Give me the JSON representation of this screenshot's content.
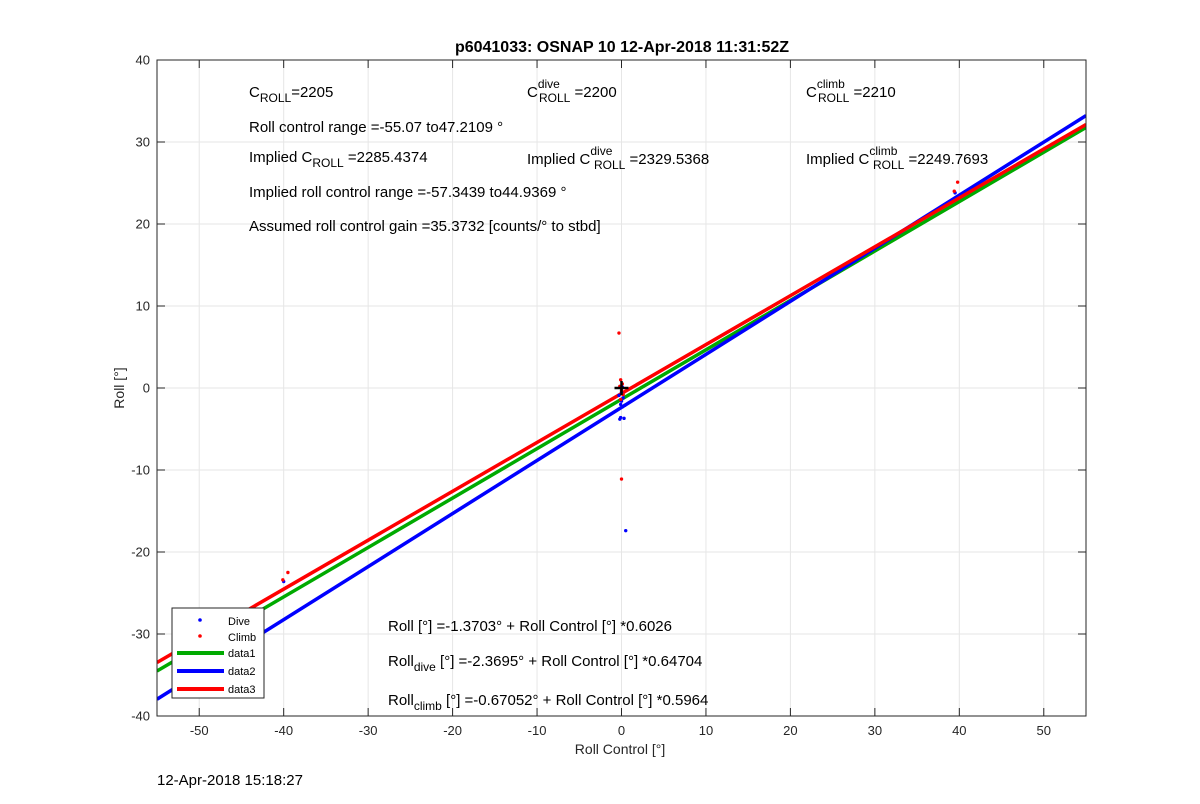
{
  "chart_data": {
    "type": "scatter",
    "title": "p6041033: OSNAP 10 12-Apr-2018 11:31:52Z",
    "xlabel": "Roll Control [°]",
    "ylabel": "Roll [°]",
    "xlim": [
      -55,
      55
    ],
    "ylim": [
      -40,
      40
    ],
    "xticks": [
      -50,
      -40,
      -30,
      -20,
      -10,
      0,
      10,
      20,
      30,
      40,
      50
    ],
    "yticks": [
      -40,
      -30,
      -20,
      -10,
      0,
      10,
      20,
      30,
      40
    ],
    "grid": true,
    "legend_position": "bottom-left",
    "scatter_series": [
      {
        "name": "Dive",
        "color": "#0000ff",
        "points": [
          [
            -0.2,
            -3.8
          ],
          [
            -0.1,
            -3.6
          ],
          [
            0.3,
            -3.7
          ],
          [
            0.1,
            -2.3
          ],
          [
            -0.1,
            -2.0
          ],
          [
            0.4,
            -2.1
          ],
          [
            0.0,
            -1.6
          ],
          [
            0.2,
            -1.2
          ],
          [
            -0.3,
            -0.9
          ],
          [
            0.0,
            -0.5
          ],
          [
            0.1,
            0.1
          ],
          [
            0.5,
            -17.4
          ],
          [
            39.5,
            23.8
          ],
          [
            -40.0,
            -23.6
          ]
        ]
      },
      {
        "name": "Climb",
        "color": "#ff0000",
        "points": [
          [
            -0.3,
            6.7
          ],
          [
            -0.1,
            1.0
          ],
          [
            0.1,
            0.5
          ],
          [
            -0.2,
            0.2
          ],
          [
            0.0,
            -0.3
          ],
          [
            0.2,
            -0.8
          ],
          [
            -0.1,
            -1.4
          ],
          [
            0.0,
            -11.1
          ],
          [
            39.8,
            25.1
          ],
          [
            39.4,
            24.0
          ],
          [
            -39.5,
            -22.5
          ],
          [
            -40.1,
            -23.4
          ]
        ]
      }
    ],
    "fit_lines": [
      {
        "name": "data1",
        "color": "#00aa00",
        "intercept": -1.3703,
        "slope": 0.6026
      },
      {
        "name": "data2",
        "color": "#0000ff",
        "intercept": -2.3695,
        "slope": 0.64704
      },
      {
        "name": "data3",
        "color": "#ff0000",
        "intercept": -0.67052,
        "slope": 0.5964
      }
    ],
    "marker": {
      "x": 0,
      "y": 0,
      "color": "#000000"
    }
  },
  "annotations": {
    "c_roll": {
      "main": "C",
      "sub": "ROLL",
      "value": "=2205"
    },
    "c_dive": {
      "main": "C",
      "sup": "dive",
      "sub": "ROLL",
      "value": " =2200"
    },
    "c_climb": {
      "main": "C",
      "sup": "climb",
      "sub": "ROLL",
      "value": " =2210"
    },
    "roll_range": "Roll control range =-55.07 to47.2109 °",
    "implied_c_roll": {
      "prefix": "Implied C",
      "sub": "ROLL",
      "value": " =2285.4374"
    },
    "implied_c_dive": {
      "prefix": "Implied C",
      "sup": "dive",
      "sub": "ROLL",
      "value": " =2329.5368"
    },
    "implied_c_climb": {
      "prefix": "Implied C",
      "sup": "climb",
      "sub": "ROLL",
      "value": " =2249.7693"
    },
    "implied_range": "Implied roll control range =-57.3439 to44.9369 °",
    "gain": "Assumed roll control gain =35.3732 [counts/° to stbd]",
    "eq_all": "Roll [°] =-1.3703° + Roll Control [°] *0.6026",
    "eq_dive": {
      "prefix": "Roll",
      "sub": "dive",
      "rest": " [°] =-2.3695° + Roll Control [°] *0.64704"
    },
    "eq_climb": {
      "prefix": "Roll",
      "sub": "climb",
      "rest": " [°] =-0.67052° + Roll Control [°] *0.5964"
    }
  },
  "timestamp": "12-Apr-2018 15:18:27"
}
